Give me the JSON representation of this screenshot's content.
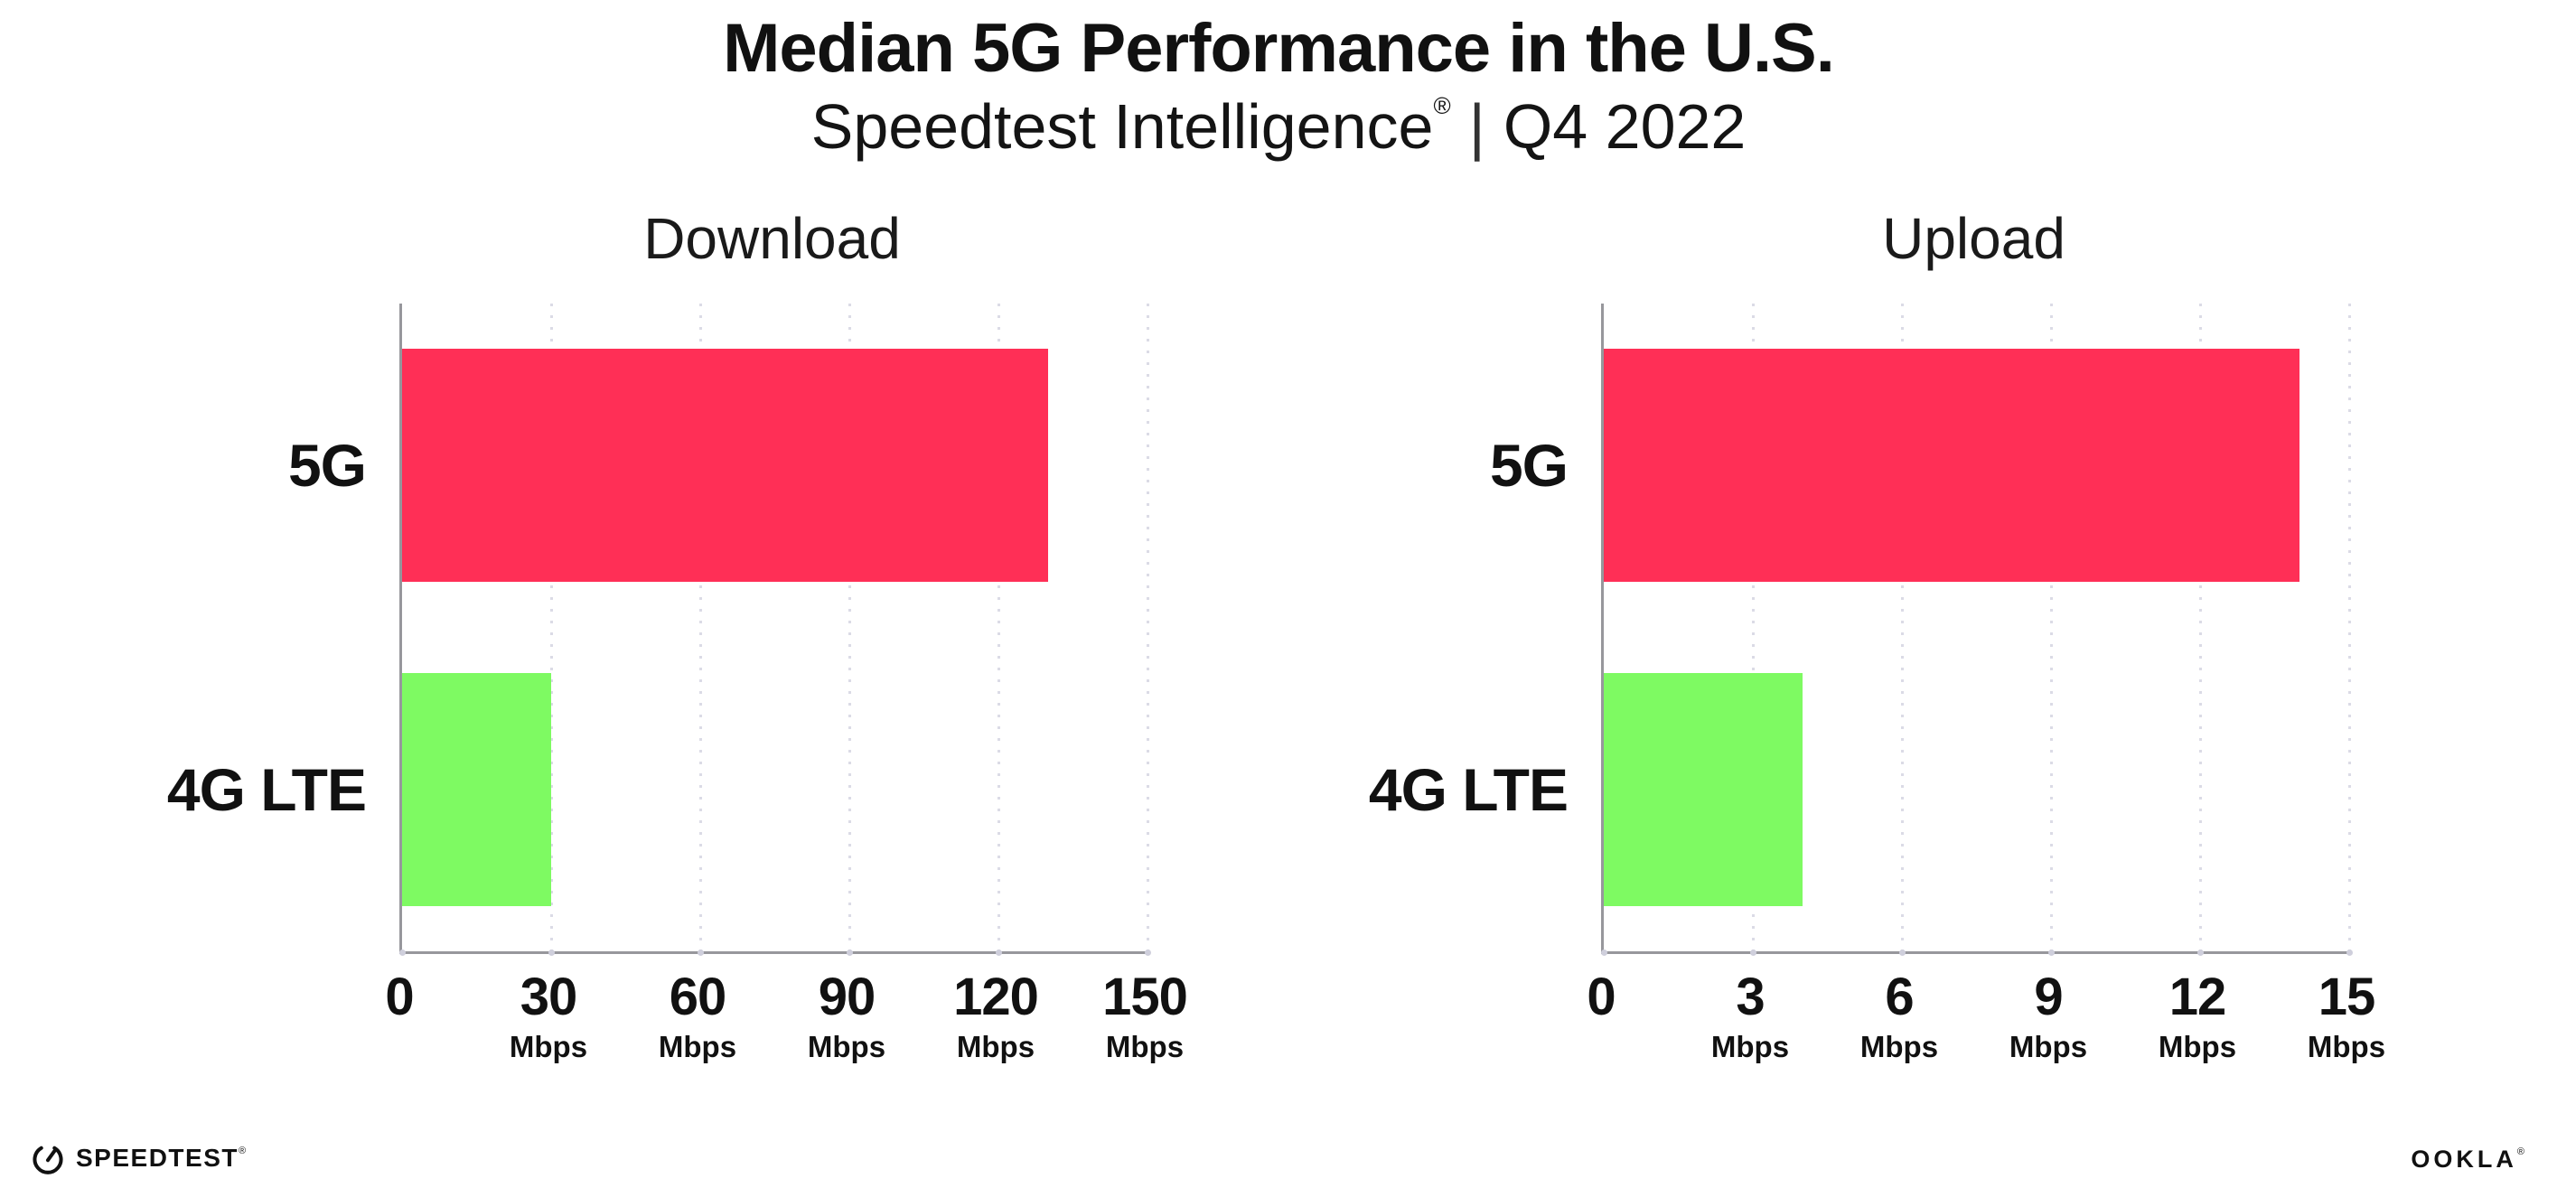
{
  "header": {
    "title": "Median 5G Performance in the U.S.",
    "subtitle_brand": "Speedtest Intelligence",
    "subtitle_reg": "®",
    "subtitle_sep": "|",
    "subtitle_period": "Q4 2022"
  },
  "colors": {
    "bar_5g": "#ff2f56",
    "bar_4g_lte": "#7efa62",
    "gridline": "#dbdbe6",
    "axis": "#97979c",
    "text": "#111111"
  },
  "chart_data": [
    {
      "type": "bar",
      "orientation": "horizontal",
      "title": "Download",
      "categories": [
        "5G",
        "4G LTE"
      ],
      "values": [
        130,
        30
      ],
      "unit": "Mbps",
      "xlabel": "",
      "ylabel": "",
      "xlim": [
        0,
        150
      ],
      "xticks": [
        0,
        30,
        60,
        90,
        120,
        150
      ],
      "xtick_unit_label": "Mbps",
      "grid": "vertical-dotted",
      "legend": "none",
      "bar_colors": [
        "#ff2f56",
        "#7efa62"
      ]
    },
    {
      "type": "bar",
      "orientation": "horizontal",
      "title": "Upload",
      "categories": [
        "5G",
        "4G LTE"
      ],
      "values": [
        14,
        4
      ],
      "unit": "Mbps",
      "xlabel": "",
      "ylabel": "",
      "xlim": [
        0,
        15
      ],
      "xticks": [
        0,
        3,
        6,
        9,
        12,
        15
      ],
      "xtick_unit_label": "Mbps",
      "grid": "vertical-dotted",
      "legend": "none",
      "bar_colors": [
        "#ff2f56",
        "#7efa62"
      ]
    }
  ],
  "footer": {
    "speedtest_label": "SPEEDTEST",
    "speedtest_reg": "®",
    "ookla_label": "OOKLA",
    "ookla_reg": "®"
  }
}
